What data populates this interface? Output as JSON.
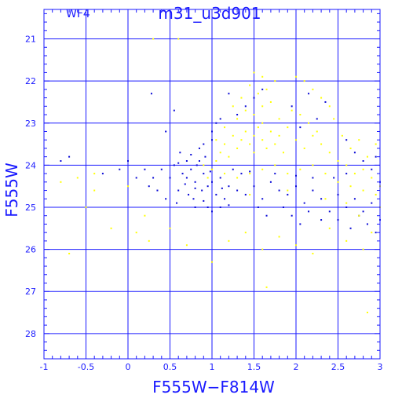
{
  "chart_data": {
    "type": "scatter",
    "panel_label": "WF4",
    "title": "m31_u3d901",
    "xlabel": "F555W−F814W",
    "ylabel": "F555W",
    "xlim": [
      -1,
      3
    ],
    "ylim": [
      28.6,
      20.3
    ],
    "y_inverted": true,
    "grid": true,
    "x_ticks": [
      -1,
      -0.5,
      0,
      0.5,
      1,
      1.5,
      2,
      2.5,
      3
    ],
    "x_tick_labels": [
      "-1",
      "-0.5",
      "0",
      "0.5",
      "1",
      "1.5",
      "2",
      "2.5",
      "3"
    ],
    "y_ticks": [
      21,
      22,
      23,
      24,
      25,
      26,
      27,
      28
    ],
    "y_tick_labels": [
      "21",
      "22",
      "23",
      "24",
      "25",
      "26",
      "27",
      "28"
    ],
    "colors": {
      "axes": "#1a1aff",
      "series_blue": "#0a0ad6",
      "series_yellow": "#ffff00"
    },
    "series": [
      {
        "color": "blue",
        "points": [
          [
            0.75,
            24.1
          ],
          [
            0.7,
            24.3
          ],
          [
            0.8,
            24.4
          ],
          [
            0.85,
            23.9
          ],
          [
            0.9,
            24.2
          ],
          [
            0.95,
            24.5
          ],
          [
            0.6,
            24.6
          ],
          [
            0.65,
            24.2
          ],
          [
            0.78,
            24.8
          ],
          [
            0.82,
            24.0
          ],
          [
            0.88,
            24.6
          ],
          [
            0.92,
            23.8
          ],
          [
            1.0,
            24.4
          ],
          [
            1.05,
            24.7
          ],
          [
            1.1,
            24.3
          ],
          [
            1.15,
            24.8
          ],
          [
            1.2,
            24.5
          ],
          [
            0.7,
            23.9
          ],
          [
            0.72,
            24.7
          ],
          [
            0.68,
            24.45
          ],
          [
            0.5,
            24.3
          ],
          [
            0.45,
            24.8
          ],
          [
            0.55,
            24.0
          ],
          [
            0.58,
            24.9
          ],
          [
            0.4,
            24.1
          ],
          [
            0.35,
            24.6
          ],
          [
            0.3,
            24.3
          ],
          [
            0.25,
            24.5
          ],
          [
            0.62,
            23.7
          ],
          [
            0.85,
            23.6
          ],
          [
            0.9,
            23.5
          ],
          [
            1.0,
            23.4
          ],
          [
            1.3,
            24.6
          ],
          [
            1.4,
            24.7
          ],
          [
            1.5,
            24.5
          ],
          [
            1.6,
            24.8
          ],
          [
            1.7,
            24.4
          ],
          [
            1.8,
            24.6
          ],
          [
            1.9,
            24.7
          ],
          [
            2.0,
            24.5
          ],
          [
            2.1,
            24.9
          ],
          [
            2.2,
            24.6
          ],
          [
            2.3,
            24.8
          ],
          [
            2.5,
            24.7
          ],
          [
            2.6,
            25.0
          ],
          [
            2.7,
            24.8
          ],
          [
            2.8,
            25.1
          ],
          [
            2.9,
            24.9
          ],
          [
            3.0,
            25.3
          ],
          [
            2.95,
            25.6
          ],
          [
            2.85,
            25.4
          ],
          [
            2.75,
            25.2
          ],
          [
            2.65,
            25.5
          ],
          [
            2.5,
            25.3
          ],
          [
            2.4,
            25.1
          ],
          [
            2.35,
            22.5
          ],
          [
            2.25,
            22.9
          ],
          [
            2.15,
            22.3
          ],
          [
            2.05,
            23.1
          ],
          [
            1.95,
            22.6
          ],
          [
            1.6,
            22.2
          ],
          [
            1.5,
            22.4
          ],
          [
            1.4,
            22.6
          ],
          [
            1.3,
            22.8
          ],
          [
            1.2,
            22.3
          ],
          [
            1.1,
            22.9
          ],
          [
            1.0,
            23.2
          ],
          [
            1.05,
            23.0
          ],
          [
            2.6,
            23.4
          ],
          [
            2.7,
            23.7
          ],
          [
            2.8,
            23.9
          ],
          [
            2.9,
            24.1
          ],
          [
            3.0,
            24.4
          ],
          [
            2.95,
            23.8
          ],
          [
            0.2,
            24.1
          ],
          [
            0.1,
            24.3
          ],
          [
            0.0,
            23.9
          ],
          [
            -0.1,
            24.1
          ],
          [
            -0.3,
            24.2
          ],
          [
            -0.7,
            23.8
          ],
          [
            -0.8,
            23.9
          ],
          [
            0.45,
            23.2
          ],
          [
            0.55,
            22.7
          ],
          [
            0.28,
            22.3
          ],
          [
            0.95,
            25.0
          ],
          [
            1.0,
            25.1
          ],
          [
            0.8,
            25.0
          ],
          [
            1.25,
            24.1
          ],
          [
            1.35,
            24.2
          ],
          [
            1.45,
            24.15
          ],
          [
            1.75,
            24.2
          ],
          [
            2.0,
            24.25
          ],
          [
            2.2,
            24.3
          ],
          [
            2.45,
            24.3
          ],
          [
            2.6,
            24.2
          ],
          [
            1.85,
            25.0
          ],
          [
            1.95,
            25.2
          ],
          [
            2.3,
            25.3
          ],
          [
            1.55,
            25.0
          ],
          [
            1.65,
            25.2
          ],
          [
            2.05,
            25.4
          ],
          [
            2.15,
            25.1
          ],
          [
            1.1,
            25.0
          ],
          [
            1.2,
            24.95
          ],
          [
            0.6,
            23.95
          ],
          [
            0.75,
            23.75
          ],
          [
            0.8,
            24.55
          ],
          [
            0.9,
            24.85
          ],
          [
            0.98,
            24.15
          ],
          [
            1.12,
            24.55
          ]
        ]
      },
      {
        "color": "yellow",
        "points": [
          [
            1.5,
            23.3
          ],
          [
            1.6,
            23.4
          ],
          [
            1.55,
            23.1
          ],
          [
            1.45,
            23.5
          ],
          [
            1.65,
            23.6
          ],
          [
            1.4,
            23.2
          ],
          [
            1.7,
            23.2
          ],
          [
            1.35,
            23.4
          ],
          [
            1.5,
            23.7
          ],
          [
            1.6,
            23.0
          ],
          [
            1.75,
            23.5
          ],
          [
            1.3,
            23.6
          ],
          [
            1.8,
            23.3
          ],
          [
            1.25,
            23.3
          ],
          [
            1.85,
            23.7
          ],
          [
            1.2,
            23.8
          ],
          [
            1.9,
            23.1
          ],
          [
            1.15,
            23.5
          ],
          [
            2.0,
            23.4
          ],
          [
            1.1,
            23.7
          ],
          [
            2.1,
            23.6
          ],
          [
            2.2,
            23.3
          ],
          [
            2.3,
            23.5
          ],
          [
            2.4,
            23.7
          ],
          [
            2.5,
            23.9
          ],
          [
            2.6,
            24.0
          ],
          [
            2.7,
            24.2
          ],
          [
            2.8,
            24.1
          ],
          [
            2.9,
            24.3
          ],
          [
            3.0,
            24.5
          ],
          [
            1.5,
            22.8
          ],
          [
            1.6,
            22.6
          ],
          [
            1.4,
            22.7
          ],
          [
            1.7,
            22.5
          ],
          [
            1.8,
            22.9
          ],
          [
            1.3,
            22.9
          ],
          [
            1.55,
            22.3
          ],
          [
            1.65,
            22.2
          ],
          [
            1.75,
            22.0
          ],
          [
            1.45,
            22.1
          ],
          [
            1.35,
            22.4
          ],
          [
            1.95,
            22.7
          ],
          [
            2.05,
            22.8
          ],
          [
            2.15,
            23.0
          ],
          [
            2.25,
            23.2
          ],
          [
            1.05,
            23.9
          ],
          [
            1.0,
            24.1
          ],
          [
            0.95,
            24.3
          ],
          [
            0.9,
            24.0
          ],
          [
            1.15,
            24.2
          ],
          [
            1.3,
            24.3
          ],
          [
            1.45,
            24.2
          ],
          [
            1.6,
            24.1
          ],
          [
            1.75,
            24.0
          ],
          [
            1.9,
            24.2
          ],
          [
            2.05,
            24.1
          ],
          [
            2.2,
            24.0
          ],
          [
            2.35,
            24.2
          ],
          [
            2.5,
            24.4
          ],
          [
            2.65,
            24.5
          ],
          [
            2.8,
            24.6
          ],
          [
            2.95,
            24.7
          ],
          [
            2.45,
            22.9
          ],
          [
            2.55,
            23.3
          ],
          [
            2.65,
            23.6
          ],
          [
            2.75,
            23.4
          ],
          [
            2.85,
            23.8
          ],
          [
            2.95,
            23.5
          ],
          [
            2.4,
            22.6
          ],
          [
            2.3,
            22.4
          ],
          [
            2.2,
            22.2
          ],
          [
            2.1,
            22.0
          ],
          [
            2.0,
            21.9
          ],
          [
            1.6,
            21.9
          ],
          [
            1.5,
            21.8
          ],
          [
            0.3,
            21.0
          ],
          [
            0.6,
            21.0
          ],
          [
            0.25,
            25.8
          ],
          [
            0.1,
            25.6
          ],
          [
            -0.2,
            25.5
          ],
          [
            -0.5,
            25.0
          ],
          [
            -0.6,
            24.3
          ],
          [
            -0.4,
            24.2
          ],
          [
            0.0,
            24.5
          ],
          [
            0.2,
            25.2
          ],
          [
            0.5,
            25.5
          ],
          [
            0.7,
            25.9
          ],
          [
            1.0,
            26.3
          ],
          [
            1.2,
            25.8
          ],
          [
            1.4,
            25.6
          ],
          [
            1.6,
            26.0
          ],
          [
            1.8,
            25.7
          ],
          [
            2.0,
            25.9
          ],
          [
            2.2,
            26.1
          ],
          [
            2.4,
            25.5
          ],
          [
            2.6,
            25.8
          ],
          [
            2.8,
            26.0
          ],
          [
            2.9,
            25.6
          ],
          [
            1.65,
            26.9
          ],
          [
            2.85,
            27.5
          ],
          [
            -0.7,
            26.1
          ],
          [
            -0.4,
            24.6
          ],
          [
            -0.8,
            24.4
          ],
          [
            1.45,
            24.7
          ],
          [
            1.9,
            24.6
          ],
          [
            2.35,
            24.8
          ],
          [
            2.6,
            24.9
          ],
          [
            2.75,
            25.2
          ],
          [
            3.0,
            25.0
          ],
          [
            1.25,
            22.6
          ],
          [
            1.15,
            23.1
          ],
          [
            1.05,
            23.4
          ]
        ]
      }
    ]
  }
}
